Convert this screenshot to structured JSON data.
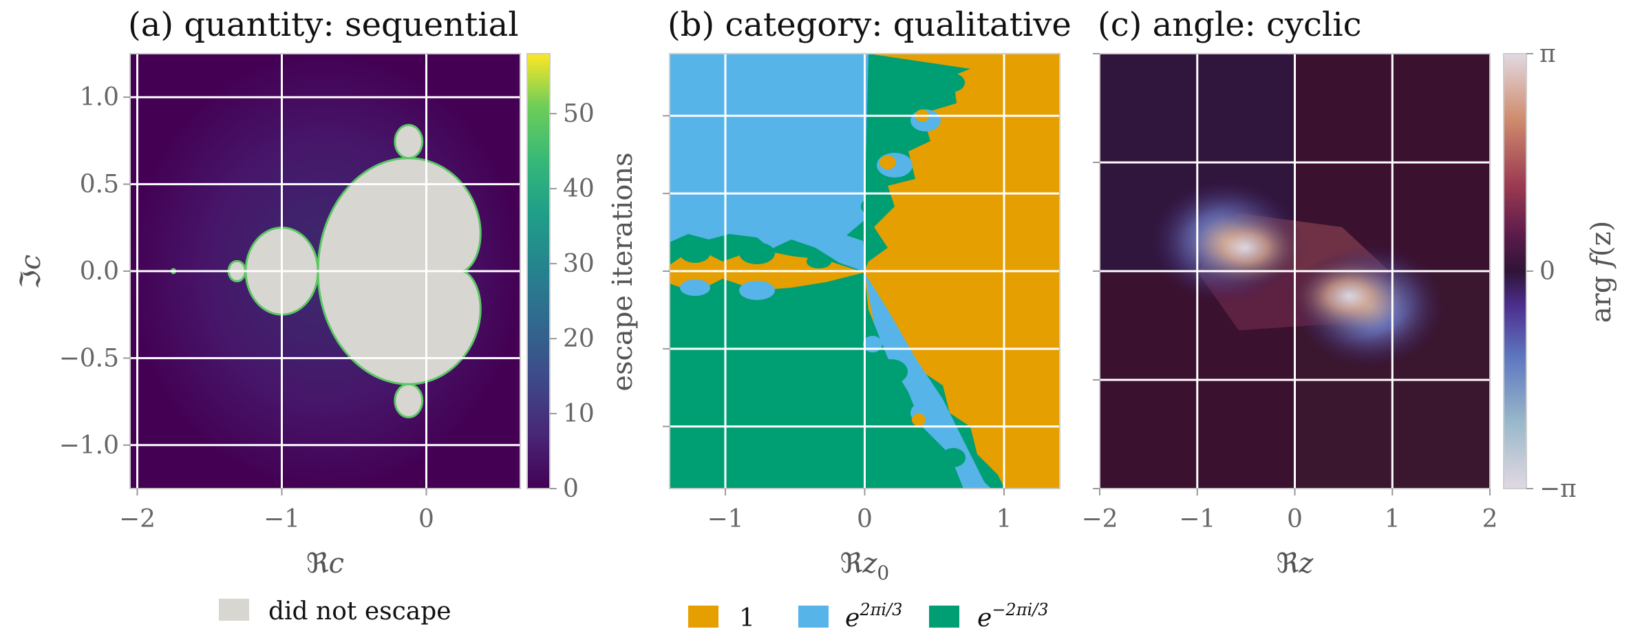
{
  "chart_data": [
    {
      "type": "heatmap",
      "panel": "a",
      "title": "(a) quantity: sequential",
      "xlabel": "ℜc",
      "ylabel": "ℑc",
      "xlim": [
        -2.05,
        0.65
      ],
      "ylim": [
        -1.25,
        1.25
      ],
      "x_ticks": [
        -2,
        -1,
        0
      ],
      "x_tick_labels": [
        "−2",
        "−1",
        "0"
      ],
      "y_ticks": [
        -1.0,
        -0.5,
        0.0,
        0.5,
        1.0
      ],
      "y_tick_labels": [
        "−1.0",
        "−0.5",
        "0.0",
        "0.5",
        "1.0"
      ],
      "colorbar": {
        "label": "escape iterations",
        "range": [
          0,
          58
        ],
        "ticks": [
          0,
          10,
          20,
          30,
          40,
          50
        ],
        "tick_labels": [
          "0",
          "10",
          "20",
          "30",
          "40",
          "50"
        ],
        "colormap": "viridis"
      },
      "legend": [
        {
          "label": "did not escape",
          "color": "#d8d6d0"
        }
      ],
      "legend_position": "below",
      "description_values": {
        "inside_color": "#d8d6d0",
        "outside_color": "#440154"
      }
    },
    {
      "type": "heatmap",
      "panel": "b",
      "title": "(b) category: qualitative",
      "xlabel": "ℜz0",
      "xlim": [
        -1.4,
        1.4
      ],
      "ylim": [
        -1.4,
        1.4
      ],
      "x_ticks": [
        -1,
        0,
        1
      ],
      "x_tick_labels": [
        "−1",
        "0",
        "1"
      ],
      "categories": [
        {
          "label": "1",
          "color": "#e69f00"
        },
        {
          "label": "e^{2πi/3}",
          "color": "#56b4e9"
        },
        {
          "label": "e^{−2πi/3}",
          "color": "#009e73"
        }
      ],
      "legend_position": "below"
    },
    {
      "type": "heatmap",
      "panel": "c",
      "title": "(c) angle: cyclic",
      "xlabel": "ℜz",
      "xlim": [
        -2,
        2
      ],
      "ylim": [
        -2,
        2
      ],
      "x_ticks": [
        -2,
        -1,
        0,
        1,
        2
      ],
      "x_tick_labels": [
        "−2",
        "−1",
        "0",
        "1",
        "2"
      ],
      "colorbar": {
        "label": "arg f(z)",
        "range": [
          -3.14159,
          3.14159
        ],
        "ticks": [
          -3.14159,
          0,
          3.14159
        ],
        "tick_labels": [
          "−π",
          "0",
          "π"
        ],
        "colormap": "twilight"
      }
    }
  ],
  "labels": {
    "a_title": "(a) quantity: sequential",
    "b_title": "(b) category: qualitative",
    "c_title": "(c) angle: cyclic",
    "a_xlabel_main": "ℜ",
    "a_xlabel_sub": "c",
    "a_ylabel_main": "ℑ",
    "a_ylabel_sub": "c",
    "b_xlabel_main": "ℜ",
    "b_xlabel_sub": "z",
    "b_xlabel_subsub": "0",
    "c_xlabel_main": "ℜ",
    "c_xlabel_sub": "z",
    "cbar_a_label": "escape iterations",
    "cbar_c_label_pre": "arg ",
    "cbar_c_label_f": "f",
    "cbar_c_label_post": "(z)",
    "legend_a": "did not escape",
    "legend_b1": "1",
    "legend_b2_base": "e",
    "legend_b2_exp": "2πi/3",
    "legend_b3_base": "e",
    "legend_b3_exp": "−2πi/3"
  },
  "colors": {
    "mandel_inside": "#d8d6d0",
    "orange": "#e69f00",
    "blue": "#56b4e9",
    "green": "#009e73"
  }
}
